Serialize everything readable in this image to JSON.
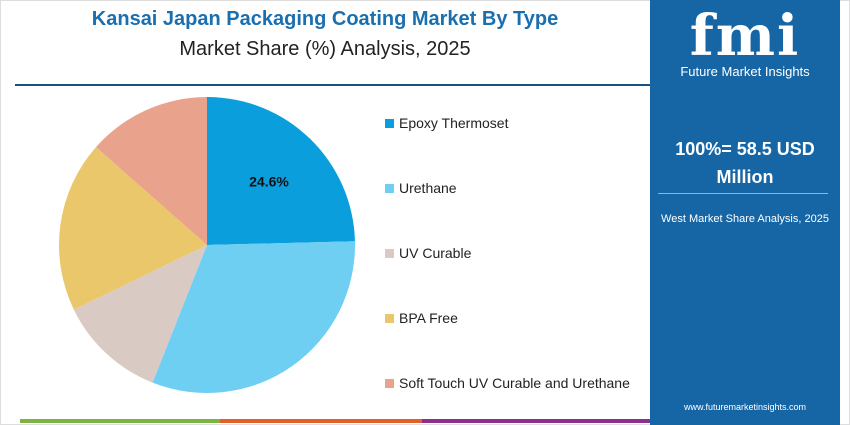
{
  "chart_data": {
    "type": "pie",
    "title": "Kansai Japan Packaging Coating Market By Type",
    "subtitle": "Market Share (%) Analysis, 2025",
    "categories": [
      "Epoxy Thermoset",
      "Urethane",
      "UV Curable",
      "BPA Free",
      "Soft Touch UV Curable and Urethane"
    ],
    "values": [
      24.6,
      31.4,
      11.8,
      18.7,
      13.5
    ],
    "colors": [
      "#0a9fdc",
      "#6ecff3",
      "#d9cbc4",
      "#ebc76b",
      "#e9a28b"
    ],
    "data_labels": [
      "24.6%",
      "",
      "",
      "",
      ""
    ],
    "legend_position": "right"
  },
  "panel": {
    "logo_text": "fmi",
    "logo_subtitle": "Future Market Insights",
    "total": "100%= 58.5 USD Million",
    "region_label": "West Market Share Analysis, 2025",
    "url": "www.futuremarketinsights.com",
    "background": "#1666a6"
  },
  "bottom_bar_colors": [
    "#7cb342",
    "#e0622a",
    "#8e2f8e"
  ]
}
